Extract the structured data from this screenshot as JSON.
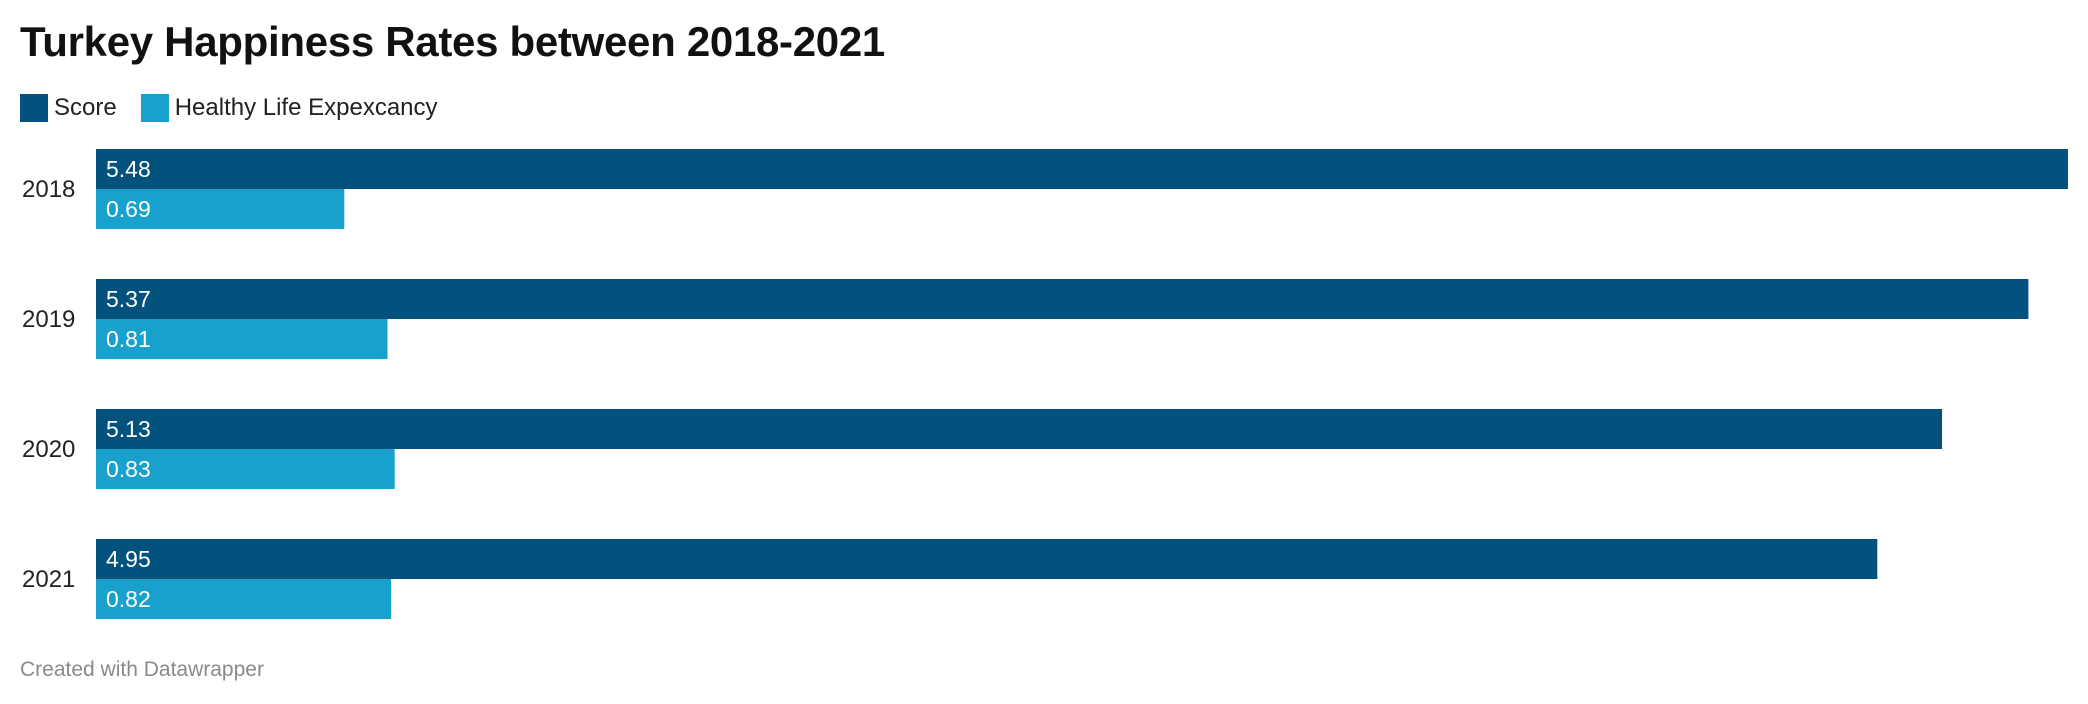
{
  "colors": {
    "score": "#03527e",
    "life": "#18a1cd",
    "value_label": "#ffffff"
  },
  "chart_data": {
    "type": "bar",
    "orientation": "horizontal",
    "title": "Turkey Happiness Rates between 2018-2021",
    "categories": [
      "2018",
      "2019",
      "2020",
      "2021"
    ],
    "series": [
      {
        "name": "Score",
        "values": [
          5.48,
          5.37,
          5.13,
          4.95
        ],
        "color": "#03527e"
      },
      {
        "name": "Healthy Life Expexcancy",
        "values": [
          0.69,
          0.81,
          0.83,
          0.82
        ],
        "color": "#18a1cd"
      }
    ],
    "value_labels": [
      [
        "5.48",
        "5.37",
        "5.13",
        "4.95"
      ],
      [
        "0.69",
        "0.81",
        "0.83",
        "0.82"
      ]
    ],
    "xlim": [
      0,
      5.48
    ],
    "grid": false,
    "legend_position": "top-left"
  },
  "footer": {
    "credit": "Created with Datawrapper"
  }
}
